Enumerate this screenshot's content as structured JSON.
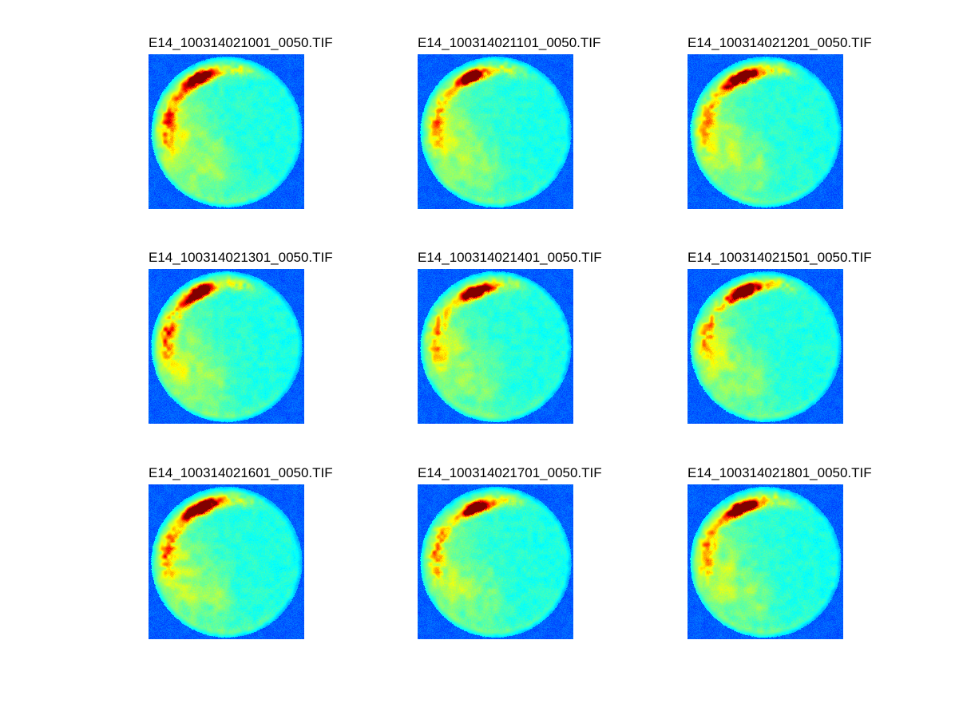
{
  "chart_data": {
    "type": "heatmap",
    "layout": {
      "rows": 3,
      "cols": 3,
      "legend": "none",
      "axes": "off"
    },
    "colormap": "jet",
    "titles": [
      "E14_100314021001_0050.TIF",
      "E14_100314021101_0050.TIF",
      "E14_100314021201_0050.TIF",
      "E14_100314021301_0050.TIF",
      "E14_100314021401_0050.TIF",
      "E14_100314021501_0050.TIF",
      "E14_100314021601_0050.TIF",
      "E14_100314021701_0050.TIF",
      "E14_100314021801_0050.TIF"
    ],
    "description": "3x3 montage of sequential TIF frames rendered with a jet colormap: each frame shows a circular sample (cyan interior) on a blue background with a dark-red hotspot on the upper-left rim, an orange/yellow fringe, yellow speckle streaks down the left rim, and a diffuse yellow-green region in the lower-left interior."
  },
  "figure": {
    "background": "#ffffff",
    "title_color": "#000000",
    "palette": {
      "background_blue": "#0e5cf0",
      "disc_cyan": "#20e2d2",
      "streak_yellow": "#cfe44e",
      "hotspot_orange": "#ff6100",
      "hotspot_dark_red": "#9b1400"
    },
    "panels": [
      {
        "title": "E14_100314021001_0050.TIF",
        "seed": 11,
        "hs_amp": 0.88,
        "hs_ang": 117,
        "hs_r": 0.8,
        "hs_len": 0.24,
        "green": 0.15,
        "tail": 0.26
      },
      {
        "title": "E14_100314021101_0050.TIF",
        "seed": 22,
        "hs_amp": 0.84,
        "hs_ang": 114,
        "hs_r": 0.8,
        "hs_len": 0.21,
        "green": 0.12,
        "tail": 0.22
      },
      {
        "title": "E14_100314021201_0050.TIF",
        "seed": 33,
        "hs_amp": 0.92,
        "hs_ang": 114,
        "hs_r": 0.79,
        "hs_len": 0.24,
        "green": 0.12,
        "tail": 0.24
      },
      {
        "title": "E14_100314021301_0050.TIF",
        "seed": 44,
        "hs_amp": 0.86,
        "hs_ang": 118,
        "hs_r": 0.81,
        "hs_len": 0.22,
        "green": 0.13,
        "tail": 0.26
      },
      {
        "title": "E14_100314021401_0050.TIF",
        "seed": 55,
        "hs_amp": 0.9,
        "hs_ang": 110,
        "hs_r": 0.78,
        "hs_len": 0.22,
        "green": 0.11,
        "tail": 0.22
      },
      {
        "title": "E14_100314021501_0050.TIF",
        "seed": 66,
        "hs_amp": 0.92,
        "hs_ang": 112,
        "hs_r": 0.79,
        "hs_len": 0.23,
        "green": 0.11,
        "tail": 0.22
      },
      {
        "title": "E14_100314021601_0050.TIF",
        "seed": 77,
        "hs_amp": 0.93,
        "hs_ang": 115,
        "hs_r": 0.8,
        "hs_len": 0.25,
        "green": 0.12,
        "tail": 0.24
      },
      {
        "title": "E14_100314021701_0050.TIF",
        "seed": 88,
        "hs_amp": 0.88,
        "hs_ang": 110,
        "hs_r": 0.77,
        "hs_len": 0.21,
        "green": 0.11,
        "tail": 0.22
      },
      {
        "title": "E14_100314021801_0050.TIF",
        "seed": 99,
        "hs_amp": 0.92,
        "hs_ang": 113,
        "hs_r": 0.79,
        "hs_len": 0.24,
        "green": 0.12,
        "tail": 0.24
      }
    ]
  }
}
